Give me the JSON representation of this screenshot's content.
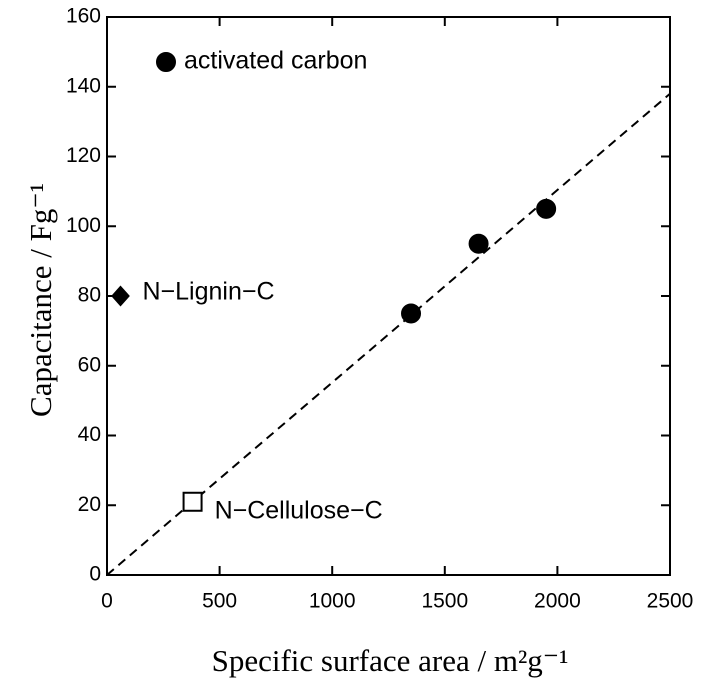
{
  "chart_data": {
    "type": "scatter",
    "xlabel": "Specific surface area / m²g⁻¹",
    "ylabel": "Capacitance / Fg⁻¹",
    "xlim": [
      0,
      2500
    ],
    "ylim": [
      0,
      160
    ],
    "xticks": [
      0,
      500,
      1000,
      1500,
      2000,
      2500
    ],
    "yticks": [
      0,
      20,
      40,
      60,
      80,
      100,
      120,
      140,
      160
    ],
    "legend": "upper left",
    "grid": false,
    "series": [
      {
        "name": "activated carbon",
        "color": "#000000",
        "marker": "circle",
        "filled": true,
        "x": [
          1350,
          1650,
          1950
        ],
        "values": [
          75,
          95,
          105
        ]
      },
      {
        "name": "N−Lignin−C",
        "color": "#000000",
        "marker": "diamond",
        "filled": true,
        "x": [
          60
        ],
        "values": [
          80
        ]
      },
      {
        "name": "N−Cellulose−C",
        "color": "#000000",
        "marker": "square",
        "filled": false,
        "x": [
          380
        ],
        "values": [
          21
        ]
      }
    ],
    "fit_line": {
      "color": "#000000",
      "dashed": true,
      "x": [
        0,
        2500
      ],
      "values": [
        0,
        138
      ]
    }
  }
}
